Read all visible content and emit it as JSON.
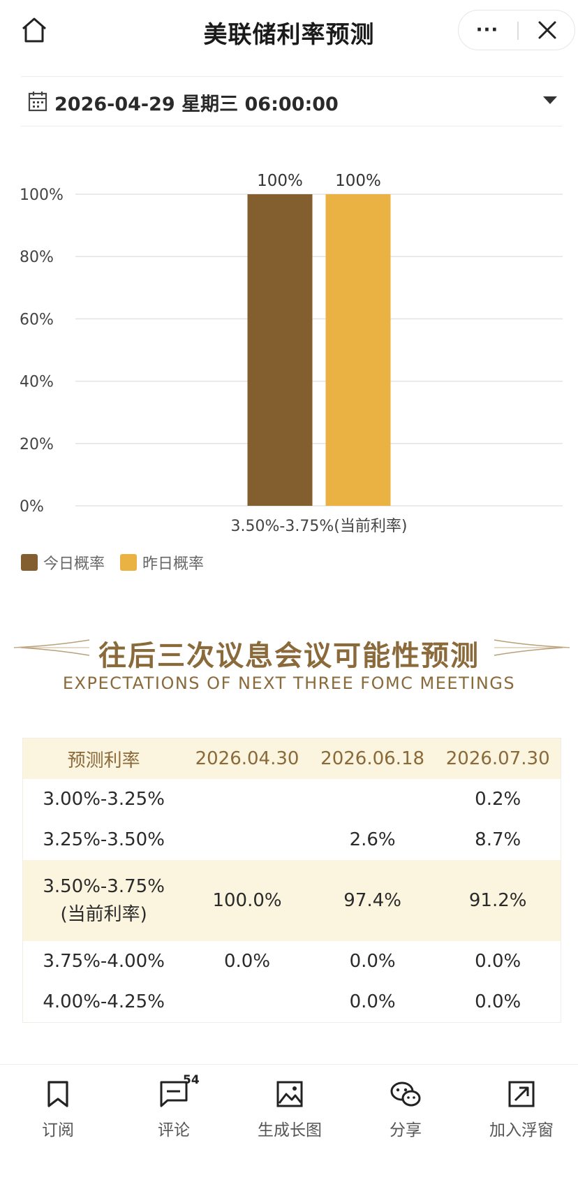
{
  "header": {
    "title": "美联储利率预测",
    "more_label": "···"
  },
  "date_selector": {
    "value": "2026-04-29 星期三 06:00:00"
  },
  "chart_data": {
    "type": "bar",
    "categories": [
      "3.50%-3.75%(当前利率)"
    ],
    "series": [
      {
        "name": "今日概率",
        "values": [
          100
        ],
        "color": "#835f30",
        "label": "100%"
      },
      {
        "name": "昨日概率",
        "values": [
          100
        ],
        "color": "#e9b243",
        "label": "100%"
      }
    ],
    "yticks": [
      "0%",
      "20%",
      "40%",
      "60%",
      "80%",
      "100%"
    ],
    "ylim": [
      0,
      100
    ],
    "grid": true,
    "legend_position": "bottom-left"
  },
  "legend": [
    {
      "label": "今日概率",
      "color": "#835f30"
    },
    {
      "label": "昨日概率",
      "color": "#e9b243"
    }
  ],
  "section": {
    "title": "往后三次议息会议可能性预测",
    "subtitle": "EXPECTATIONS OF NEXT THREE FOMC MEETINGS"
  },
  "table": {
    "headers": [
      "预测利率",
      "2026.04.30",
      "2026.06.18",
      "2026.07.30"
    ],
    "rows": [
      {
        "rate": "3.00%-3.25%",
        "values": [
          "",
          "",
          "0.2%"
        ]
      },
      {
        "rate": "3.25%-3.50%",
        "values": [
          "",
          "2.6%",
          "8.7%"
        ]
      },
      {
        "rate": "3.50%-3.75%",
        "rate_note": "(当前利率)",
        "values": [
          "100.0%",
          "97.4%",
          "91.2%"
        ]
      },
      {
        "rate": "3.75%-4.00%",
        "values": [
          "0.0%",
          "0.0%",
          "0.0%"
        ]
      },
      {
        "rate": "4.00%-4.25%",
        "values": [
          "",
          "0.0%",
          "0.0%"
        ]
      }
    ]
  },
  "bottom_nav": [
    {
      "label": "订阅",
      "icon": "bookmark-icon"
    },
    {
      "label": "评论",
      "icon": "comment-icon",
      "badge": "54"
    },
    {
      "label": "生成长图",
      "icon": "image-icon"
    },
    {
      "label": "分享",
      "icon": "wechat-icon"
    },
    {
      "label": "加入浮窗",
      "icon": "float-window-icon"
    }
  ],
  "colors": {
    "accent": "#8a6a3a",
    "today": "#835f30",
    "yesterday": "#e9b243",
    "highlight": "#fbf4de"
  }
}
